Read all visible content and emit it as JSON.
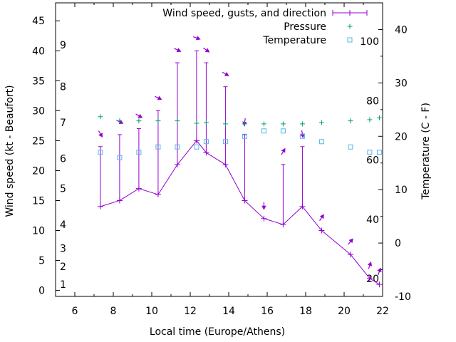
{
  "chart_data": {
    "type": "line",
    "xlabel": "Local time (Europe/Athens)",
    "ylabel": "Wind speed (kt - Beaufort)",
    "y2label": "Temperature (C - F)",
    "xlim": [
      5,
      22
    ],
    "ylim": [
      -1,
      48
    ],
    "y2lim": [
      -10,
      45
    ],
    "x_ticks": [
      "6",
      "8",
      "10",
      "12",
      "14",
      "16",
      "18",
      "20",
      "22"
    ],
    "y_ticks": [
      "0",
      "5",
      "10",
      "15",
      "20",
      "25",
      "30",
      "35",
      "40",
      "45"
    ],
    "y2_ticks": [
      "-10",
      "0",
      "10",
      "20",
      "30",
      "40"
    ],
    "beaufort_labels": [
      {
        "text": "1",
        "kt": 1
      },
      {
        "text": "2",
        "kt": 4
      },
      {
        "text": "3",
        "kt": 7
      },
      {
        "text": "4",
        "kt": 11
      },
      {
        "text": "5",
        "kt": 17
      },
      {
        "text": "6",
        "kt": 22
      },
      {
        "text": "7",
        "kt": 28
      },
      {
        "text": "8",
        "kt": 34
      },
      {
        "text": "9",
        "kt": 41
      }
    ],
    "fahrenheit_labels": [
      {
        "text": "20",
        "c": -6.67
      },
      {
        "text": "40",
        "c": 4.44
      },
      {
        "text": "60",
        "c": 15.56
      },
      {
        "text": "80",
        "c": 26.67
      },
      {
        "text": "100",
        "c": 37.78
      }
    ],
    "series": [
      {
        "name": "Wind speed, gusts, and direction",
        "color": "#9400d3",
        "x": [
          7.33,
          8.33,
          9.33,
          10.33,
          11.33,
          12.33,
          12.83,
          13.83,
          14.83,
          15.83,
          16.83,
          17.83,
          18.83,
          20.33,
          21.33,
          21.83
        ],
        "values": [
          14,
          15,
          17,
          16,
          21,
          25,
          23,
          21,
          15,
          12,
          11,
          14,
          10,
          6,
          2,
          1
        ],
        "gusts": [
          24,
          26,
          27,
          30,
          38,
          40,
          38,
          34,
          26,
          12,
          21,
          24,
          10,
          6,
          2,
          1
        ],
        "direction_deg": [
          330,
          295,
          300,
          295,
          295,
          290,
          305,
          300,
          10,
          0,
          210,
          350,
          215,
          220,
          200,
          200
        ]
      },
      {
        "name": "Pressure",
        "color": "#009e73",
        "x": [
          7.33,
          8.33,
          9.33,
          10.33,
          11.33,
          12.33,
          12.83,
          13.83,
          14.83,
          15.83,
          16.83,
          17.83,
          18.83,
          20.33,
          21.33,
          21.83
        ],
        "values": [
          29,
          28.3,
          28.3,
          28.3,
          28.3,
          27.9,
          28,
          27.8,
          27.8,
          27.8,
          27.8,
          27.8,
          28,
          28.3,
          28.5,
          28.8
        ]
      },
      {
        "name": "Temperature",
        "color": "#56b4e9",
        "x": [
          7.33,
          8.33,
          9.33,
          10.33,
          11.33,
          12.33,
          12.83,
          13.83,
          14.83,
          15.83,
          16.83,
          17.83,
          18.83,
          20.33,
          21.33,
          21.83
        ],
        "values": [
          17,
          16,
          17,
          18,
          18,
          18,
          19,
          19,
          20,
          21,
          21,
          20,
          19,
          18,
          17,
          17
        ]
      }
    ],
    "legend_position": "top-right",
    "grid": false
  }
}
